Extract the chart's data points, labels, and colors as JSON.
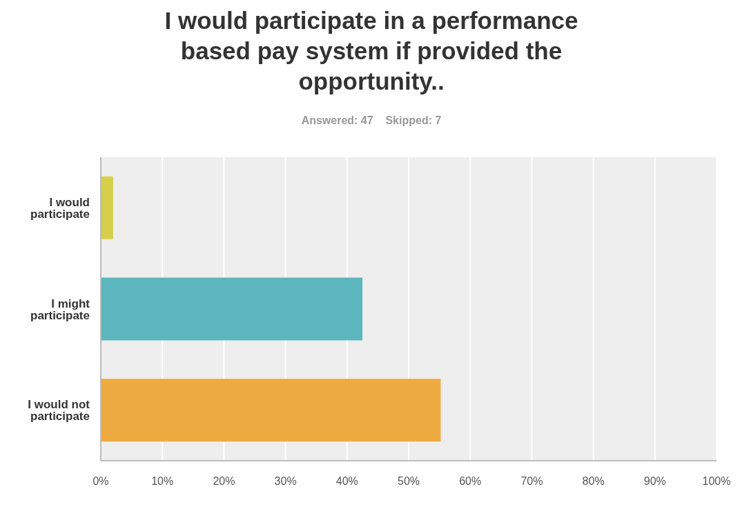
{
  "chart_data": {
    "type": "bar",
    "orientation": "horizontal",
    "title": "I would participate in a performance based pay system if provided the opportunity..",
    "subtitle": "Answered: 47    Skipped: 7",
    "categories": [
      "I would participate",
      "I might participate",
      "I would not participate"
    ],
    "values": [
      2,
      42.5,
      55.2
    ],
    "colors": [
      "#d5cf4b",
      "#5bb6bd",
      "#eeaa40"
    ],
    "xlim": [
      0,
      100
    ],
    "xticks": [
      {
        "value": 0,
        "label": "0%"
      },
      {
        "value": 10,
        "label": "10%"
      },
      {
        "value": 20,
        "label": "20%"
      },
      {
        "value": 30,
        "label": "30%"
      },
      {
        "value": 40,
        "label": "40%"
      },
      {
        "value": 50,
        "label": "50%"
      },
      {
        "value": 60,
        "label": "60%"
      },
      {
        "value": 70,
        "label": "70%"
      },
      {
        "value": 80,
        "label": "80%"
      },
      {
        "value": 90,
        "label": "90%"
      },
      {
        "value": 100,
        "label": "100%"
      }
    ],
    "grid": "x"
  }
}
